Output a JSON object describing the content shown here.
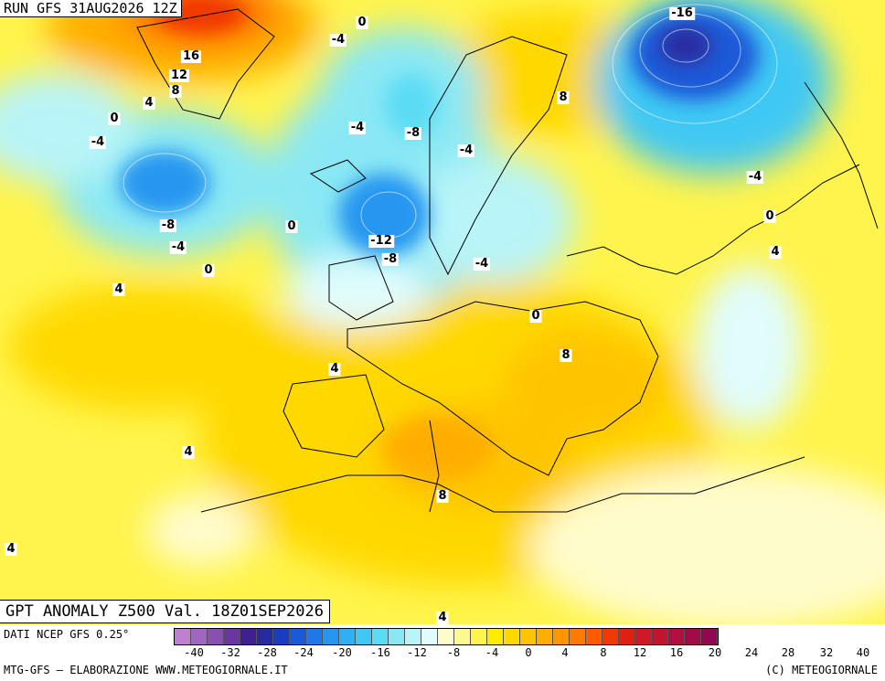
{
  "header": {
    "run_title": "RUN GFS 31AUG2026 12Z"
  },
  "map": {
    "title": "GPT ANOMALY Z500 Val. 18Z01SEP2026",
    "contour_labels": [
      "0",
      "-4",
      "16",
      "12",
      "8",
      "4",
      "0",
      "-4",
      "-8",
      "-4",
      "-4",
      "-8",
      "-4",
      "-16",
      "8",
      "-4",
      "0",
      "0",
      "-12",
      "-8",
      "-4",
      "4",
      "0",
      "4",
      "8",
      "4",
      "8",
      "4",
      "4",
      "0",
      "4"
    ]
  },
  "legend": {
    "source": "DATI NCEP GFS 0.25°",
    "tick_labels": [
      "-40",
      "-32",
      "-28",
      "-24",
      "-20",
      "-16",
      "-12",
      "-8",
      "-4",
      "0",
      "4",
      "8",
      "12",
      "16",
      "20",
      "24",
      "28",
      "32",
      "40"
    ],
    "colors": [
      "#c080d0",
      "#a066c0",
      "#8850b0",
      "#6a36a0",
      "#402090",
      "#2a2aa0",
      "#1a3cc0",
      "#1a5ad8",
      "#1e78e6",
      "#2696f0",
      "#30b0f4",
      "#40c8f4",
      "#5cdcf4",
      "#8ae8f4",
      "#b8f4f8",
      "#e0fcfc",
      "#fffccc",
      "#fff890",
      "#fff44c",
      "#ffec00",
      "#ffd800",
      "#ffc400",
      "#ffae00",
      "#ff9600",
      "#ff7a00",
      "#ff5a00",
      "#f03800",
      "#e02010",
      "#d01828",
      "#c01430",
      "#b01040",
      "#a00c48",
      "#900850"
    ]
  },
  "footer": {
    "credit_left": "MTG-GFS – ELABORAZIONE WWW.METEOGIORNALE.IT",
    "credit_right": "(C) METEOGIORNALE"
  }
}
